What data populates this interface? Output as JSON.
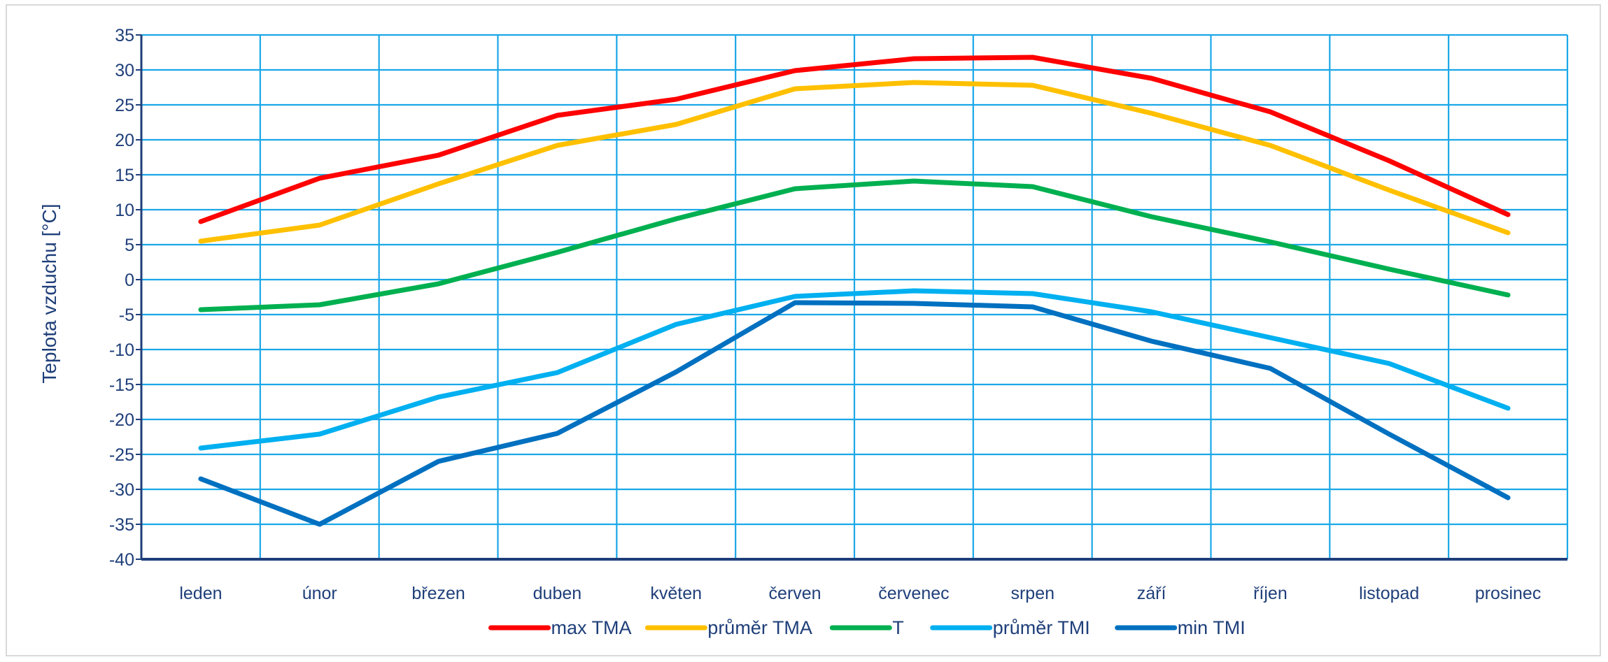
{
  "chart_data": {
    "type": "line",
    "title": "",
    "xlabel": "",
    "ylabel": "Teplota vzduchu [°C]",
    "categories": [
      "leden",
      "únor",
      "březen",
      "duben",
      "květen",
      "červen",
      "červenec",
      "srpen",
      "září",
      "říjen",
      "listopad",
      "prosinec"
    ],
    "ylim": [
      -40,
      35
    ],
    "yticks": [
      35,
      30,
      25,
      20,
      15,
      10,
      5,
      0,
      -5,
      -10,
      -15,
      -20,
      -25,
      -30,
      -35,
      -40
    ],
    "grid": true,
    "legend_position": "bottom",
    "series": [
      {
        "name": "max TMA",
        "color": "#ff0000",
        "values": [
          8.3,
          14.5,
          17.8,
          23.5,
          25.8,
          29.9,
          31.6,
          31.8,
          28.8,
          24.0,
          17.0,
          9.3
        ]
      },
      {
        "name": "průměr TMA",
        "color": "#ffc000",
        "values": [
          5.5,
          7.8,
          13.7,
          19.2,
          22.2,
          27.3,
          28.2,
          27.8,
          23.8,
          19.2,
          12.8,
          6.7
        ]
      },
      {
        "name": "T",
        "color": "#00b050",
        "values": [
          -4.3,
          -3.6,
          -0.6,
          3.9,
          8.7,
          13.0,
          14.1,
          13.3,
          9.0,
          5.4,
          1.5,
          -2.2
        ]
      },
      {
        "name": "průměr TMI",
        "color": "#00b0f0",
        "values": [
          -24.1,
          -22.1,
          -16.8,
          -13.3,
          -6.4,
          -2.4,
          -1.6,
          -2.0,
          -4.6,
          -8.3,
          -12.0,
          -18.4
        ]
      },
      {
        "name": "min TMI",
        "color": "#0070c0",
        "values": [
          -28.5,
          -35.0,
          -26.0,
          -22.0,
          -13.2,
          -3.3,
          -3.4,
          -3.9,
          -8.8,
          -12.7,
          -22.1,
          -31.2
        ]
      }
    ]
  }
}
